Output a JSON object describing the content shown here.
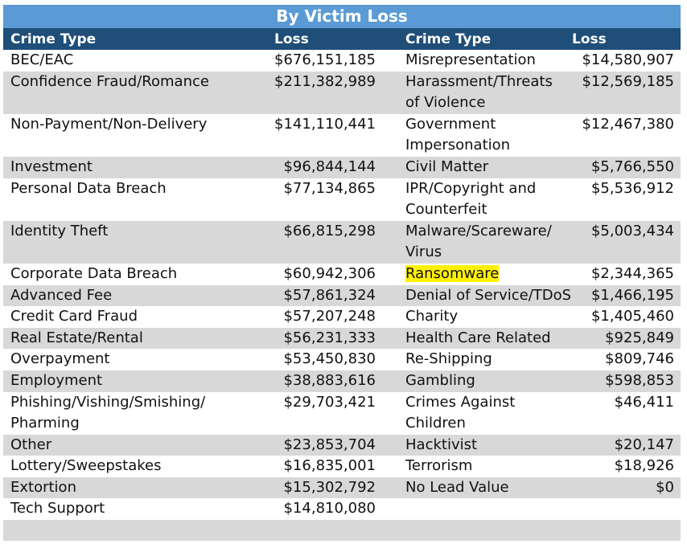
{
  "title": "By Victim Loss",
  "headers": {
    "crime_type": "Crime Type",
    "loss": "Loss"
  },
  "highlight_color": "#fff200",
  "rows": [
    {
      "left_type": [
        "BEC/EAC"
      ],
      "left_loss": "$676,151,185",
      "right_type": [
        "Misrepresentation"
      ],
      "right_loss": "$14,580,907",
      "alt": false
    },
    {
      "left_type": [
        "Confidence Fraud/Romance"
      ],
      "left_loss": "$211,382,989",
      "right_type": [
        "Harassment/Threats",
        "of Violence"
      ],
      "right_loss": "$12,569,185",
      "alt": true
    },
    {
      "left_type": [
        "Non-Payment/Non-Delivery"
      ],
      "left_loss": "$141,110,441",
      "right_type": [
        "Government",
        "Impersonation"
      ],
      "right_loss": "$12,467,380",
      "alt": false
    },
    {
      "left_type": [
        "Investment"
      ],
      "left_loss": "$96,844,144",
      "right_type": [
        "Civil Matter"
      ],
      "right_loss": "$5,766,550",
      "alt": true
    },
    {
      "left_type": [
        "Personal Data Breach"
      ],
      "left_loss": "$77,134,865",
      "right_type": [
        "IPR/Copyright and",
        "Counterfeit"
      ],
      "right_loss": "$5,536,912",
      "alt": false
    },
    {
      "left_type": [
        "Identity Theft"
      ],
      "left_loss": "$66,815,298",
      "right_type": [
        "Malware/Scareware/",
        "Virus"
      ],
      "right_loss": "$5,003,434",
      "alt": true
    },
    {
      "left_type": [
        "Corporate Data Breach"
      ],
      "left_loss": "$60,942,306",
      "right_type": [
        "Ransomware"
      ],
      "right_loss": "$2,344,365",
      "alt": false,
      "right_highlight": true
    },
    {
      "left_type": [
        "Advanced Fee"
      ],
      "left_loss": "$57,861,324",
      "right_type": [
        "Denial of Service/TDoS"
      ],
      "right_loss": "$1,466,195",
      "alt": true
    },
    {
      "left_type": [
        "Credit Card Fraud"
      ],
      "left_loss": "$57,207,248",
      "right_type": [
        "Charity"
      ],
      "right_loss": "$1,405,460",
      "alt": false
    },
    {
      "left_type": [
        "Real Estate/Rental"
      ],
      "left_loss": "$56,231,333",
      "right_type": [
        "Health Care Related"
      ],
      "right_loss": "$925,849",
      "alt": true
    },
    {
      "left_type": [
        "Overpayment"
      ],
      "left_loss": "$53,450,830",
      "right_type": [
        "Re-Shipping"
      ],
      "right_loss": "$809,746",
      "alt": false
    },
    {
      "left_type": [
        "Employment"
      ],
      "left_loss": "$38,883,616",
      "right_type": [
        "Gambling"
      ],
      "right_loss": "$598,853",
      "alt": true
    },
    {
      "left_type": [
        "Phishing/Vishing/Smishing/",
        "Pharming"
      ],
      "left_loss": "$29,703,421",
      "right_type": [
        "Crimes Against",
        "Children"
      ],
      "right_loss": "$46,411",
      "alt": false
    },
    {
      "left_type": [
        "Other"
      ],
      "left_loss": "$23,853,704",
      "right_type": [
        "Hacktivist"
      ],
      "right_loss": "$20,147",
      "alt": true
    },
    {
      "left_type": [
        "Lottery/Sweepstakes"
      ],
      "left_loss": "$16,835,001",
      "right_type": [
        "Terrorism"
      ],
      "right_loss": "$18,926",
      "alt": false
    },
    {
      "left_type": [
        "Extortion"
      ],
      "left_loss": "$15,302,792",
      "right_type": [
        "No Lead Value"
      ],
      "right_loss": "$0",
      "alt": true
    },
    {
      "left_type": [
        "Tech Support"
      ],
      "left_loss": "$14,810,080",
      "right_type": [],
      "right_loss": "",
      "alt": false
    }
  ]
}
